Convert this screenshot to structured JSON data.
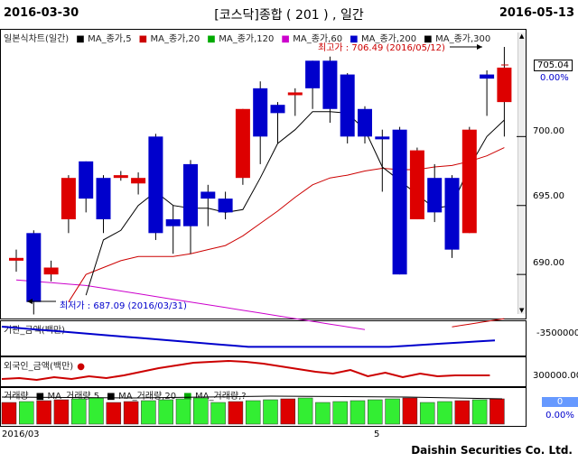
{
  "header": {
    "start_date": "2016-03-30",
    "end_date": "2016-05-13",
    "title": "[코스닥]종합 ( 201 ) , 일간"
  },
  "main": {
    "legend": [
      {
        "label": "일본식차트(일간)",
        "color": "#000000"
      },
      {
        "label": "MA_종가,5",
        "color": "#000000"
      },
      {
        "label": "MA_종가,20",
        "color": "#cc0000"
      },
      {
        "label": "MA_종가,120",
        "color": "#00aa00"
      },
      {
        "label": "MA_종가,60",
        "color": "#cc00cc"
      },
      {
        "label": "MA_종가,200",
        "color": "#0000cc"
      },
      {
        "label": "MA_종가,300",
        "color": "#000000"
      }
    ],
    "high_label": "최고가 : 706.49 (2016/05/12)",
    "low_label": "최저가 : 687.09 (2016/03/31)",
    "current_value": "705.04",
    "current_change": "0.00%",
    "y_ticks": [
      "700.00",
      "695.00",
      "690.00"
    ]
  },
  "inst_panel": {
    "label": "기관_금액(백만)",
    "tick": "-3500000"
  },
  "foreign_panel": {
    "label": "외국인_금액(백만)",
    "tick": "300000.00"
  },
  "volume_panel": {
    "legend": [
      {
        "label": "거래량",
        "color": "#cc0000"
      },
      {
        "label": "MA_거래량,5",
        "color": "#000000"
      },
      {
        "label": "MA_거래량,20",
        "color": "#000000"
      },
      {
        "label": "MA_거래량,?",
        "color": "#00aa00"
      }
    ],
    "value": "0",
    "change": "0.00%"
  },
  "x_axis": {
    "labels": [
      "2016/03",
      "5"
    ]
  },
  "footer": "Daishin Securities Co. Ltd.",
  "chart_data": {
    "type": "candlestick",
    "ylim": [
      687,
      706.5
    ],
    "candles": [
      {
        "o": 691.0,
        "c": 691.2,
        "h": 691.8,
        "l": 690.2,
        "up": true
      },
      {
        "o": 693.0,
        "c": 688.0,
        "h": 693.2,
        "l": 687.1,
        "up": false
      },
      {
        "o": 690.5,
        "c": 690.0,
        "h": 691.0,
        "l": 689.5,
        "up": true
      },
      {
        "o": 694.0,
        "c": 697.0,
        "h": 697.2,
        "l": 693.0,
        "up": true
      },
      {
        "o": 698.2,
        "c": 695.5,
        "h": 698.2,
        "l": 694.5,
        "up": false
      },
      {
        "o": 697.0,
        "c": 694.0,
        "h": 697.2,
        "l": 693.0,
        "up": false
      },
      {
        "o": 697.0,
        "c": 697.2,
        "h": 697.5,
        "l": 696.8,
        "up": true
      },
      {
        "o": 696.6,
        "c": 697.0,
        "h": 697.4,
        "l": 695.8,
        "up": true
      },
      {
        "o": 700.0,
        "c": 693.0,
        "h": 700.2,
        "l": 692.5,
        "up": false
      },
      {
        "o": 694.0,
        "c": 693.5,
        "h": 695.0,
        "l": 691.5,
        "up": false
      },
      {
        "o": 698.0,
        "c": 693.5,
        "h": 698.3,
        "l": 691.5,
        "up": false
      },
      {
        "o": 696.0,
        "c": 695.5,
        "h": 696.5,
        "l": 693.5,
        "up": false
      },
      {
        "o": 695.5,
        "c": 694.5,
        "h": 696.0,
        "l": 694.0,
        "up": false
      },
      {
        "o": 697.0,
        "c": 702.0,
        "h": 702.0,
        "l": 696.5,
        "up": true
      },
      {
        "o": 703.5,
        "c": 700.0,
        "h": 704.0,
        "l": 698.0,
        "up": false
      },
      {
        "o": 702.3,
        "c": 701.7,
        "h": 702.5,
        "l": 699.5,
        "up": false
      },
      {
        "o": 703.0,
        "c": 703.2,
        "h": 703.5,
        "l": 701.5,
        "up": true
      },
      {
        "o": 705.5,
        "c": 703.5,
        "h": 705.5,
        "l": 702.0,
        "up": false
      },
      {
        "o": 705.5,
        "c": 702.0,
        "h": 705.8,
        "l": 701.0,
        "up": false
      },
      {
        "o": 704.5,
        "c": 700.0,
        "h": 704.6,
        "l": 699.5,
        "up": false
      },
      {
        "o": 702.0,
        "c": 700.0,
        "h": 702.2,
        "l": 699.5,
        "up": false
      },
      {
        "o": 700.0,
        "c": 699.8,
        "h": 700.5,
        "l": 696.0,
        "up": false
      },
      {
        "o": 700.5,
        "c": 690.0,
        "h": 700.7,
        "l": 690.0,
        "up": false
      },
      {
        "o": 694.0,
        "c": 699.0,
        "h": 699.2,
        "l": 694.0,
        "up": true
      },
      {
        "o": 697.0,
        "c": 694.5,
        "h": 698.0,
        "l": 693.8,
        "up": false
      },
      {
        "o": 697.0,
        "c": 691.8,
        "h": 697.2,
        "l": 691.2,
        "up": false
      },
      {
        "o": 693.0,
        "c": 700.5,
        "h": 700.7,
        "l": 693.0,
        "up": true
      },
      {
        "o": 704.2,
        "c": 704.5,
        "h": 704.8,
        "l": 701.5,
        "up": false
      },
      {
        "o": 702.5,
        "c": 705.0,
        "h": 706.5,
        "l": 700.0,
        "up": true
      }
    ],
    "ma5": [
      null,
      null,
      null,
      null,
      688.5,
      692.5,
      693.2,
      695.0,
      696.0,
      695.0,
      694.8,
      694.8,
      694.5,
      694.7,
      697.0,
      699.5,
      700.5,
      701.8,
      701.8,
      701.7,
      700.5,
      697.8,
      696.8,
      695.8,
      694.8,
      695.0,
      697.8,
      700.0,
      701.2
    ],
    "ma20": [
      null,
      null,
      null,
      688.0,
      690.0,
      690.5,
      691.0,
      691.3,
      691.3,
      691.3,
      691.5,
      691.8,
      692.1,
      692.8,
      693.7,
      694.6,
      695.6,
      696.5,
      697.0,
      697.2,
      697.5,
      697.7,
      697.6,
      697.6,
      697.8,
      697.9,
      698.2,
      698.6,
      699.2
    ],
    "ma60": [
      689.6,
      689.5,
      689.4,
      689.3,
      689.2,
      689.0,
      688.8,
      688.6,
      688.4,
      688.2,
      688.0,
      687.8,
      687.6,
      687.4,
      687.2,
      687.0,
      686.8,
      686.6,
      686.4,
      686.2,
      686.0,
      null,
      null,
      null,
      null,
      null,
      null,
      null,
      null
    ],
    "ma120_tail": [
      686.2,
      686.4,
      686.6,
      686.8
    ]
  }
}
